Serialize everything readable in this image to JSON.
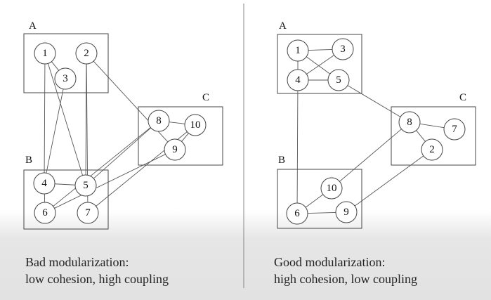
{
  "panels": [
    {
      "id": "bad",
      "caption_title": "Bad modularization:",
      "caption_subtitle": "low cohesion, high coupling",
      "modules": [
        {
          "label": "A",
          "nodes": [
            "1",
            "2",
            "3"
          ]
        },
        {
          "label": "B",
          "nodes": [
            "4",
            "5",
            "6",
            "7"
          ]
        },
        {
          "label": "C",
          "nodes": [
            "8",
            "9",
            "10"
          ]
        }
      ],
      "edges": [
        [
          "1",
          "3"
        ],
        [
          "1",
          "4"
        ],
        [
          "1",
          "5"
        ],
        [
          "3",
          "4"
        ],
        [
          "2",
          "5"
        ],
        [
          "2",
          "7"
        ],
        [
          "2",
          "9"
        ],
        [
          "4",
          "5"
        ],
        [
          "4",
          "6"
        ],
        [
          "5",
          "8"
        ],
        [
          "6",
          "8"
        ],
        [
          "6",
          "9"
        ],
        [
          "7",
          "10"
        ],
        [
          "8",
          "10"
        ],
        [
          "9",
          "10"
        ]
      ]
    },
    {
      "id": "good",
      "caption_title": "Good modularization:",
      "caption_subtitle": "high cohesion, low coupling",
      "modules": [
        {
          "label": "A",
          "nodes": [
            "1",
            "3",
            "4",
            "5"
          ]
        },
        {
          "label": "B",
          "nodes": [
            "10",
            "6",
            "9"
          ]
        },
        {
          "label": "C",
          "nodes": [
            "8",
            "7",
            "2"
          ]
        }
      ],
      "edges": [
        [
          "1",
          "3"
        ],
        [
          "1",
          "4"
        ],
        [
          "1",
          "5"
        ],
        [
          "3",
          "4"
        ],
        [
          "4",
          "5"
        ],
        [
          "4",
          "6"
        ],
        [
          "5",
          "8"
        ],
        [
          "8",
          "7"
        ],
        [
          "8",
          "2"
        ],
        [
          "8",
          "10"
        ],
        [
          "6",
          "10"
        ],
        [
          "6",
          "9"
        ],
        [
          "9",
          "2"
        ]
      ]
    }
  ]
}
